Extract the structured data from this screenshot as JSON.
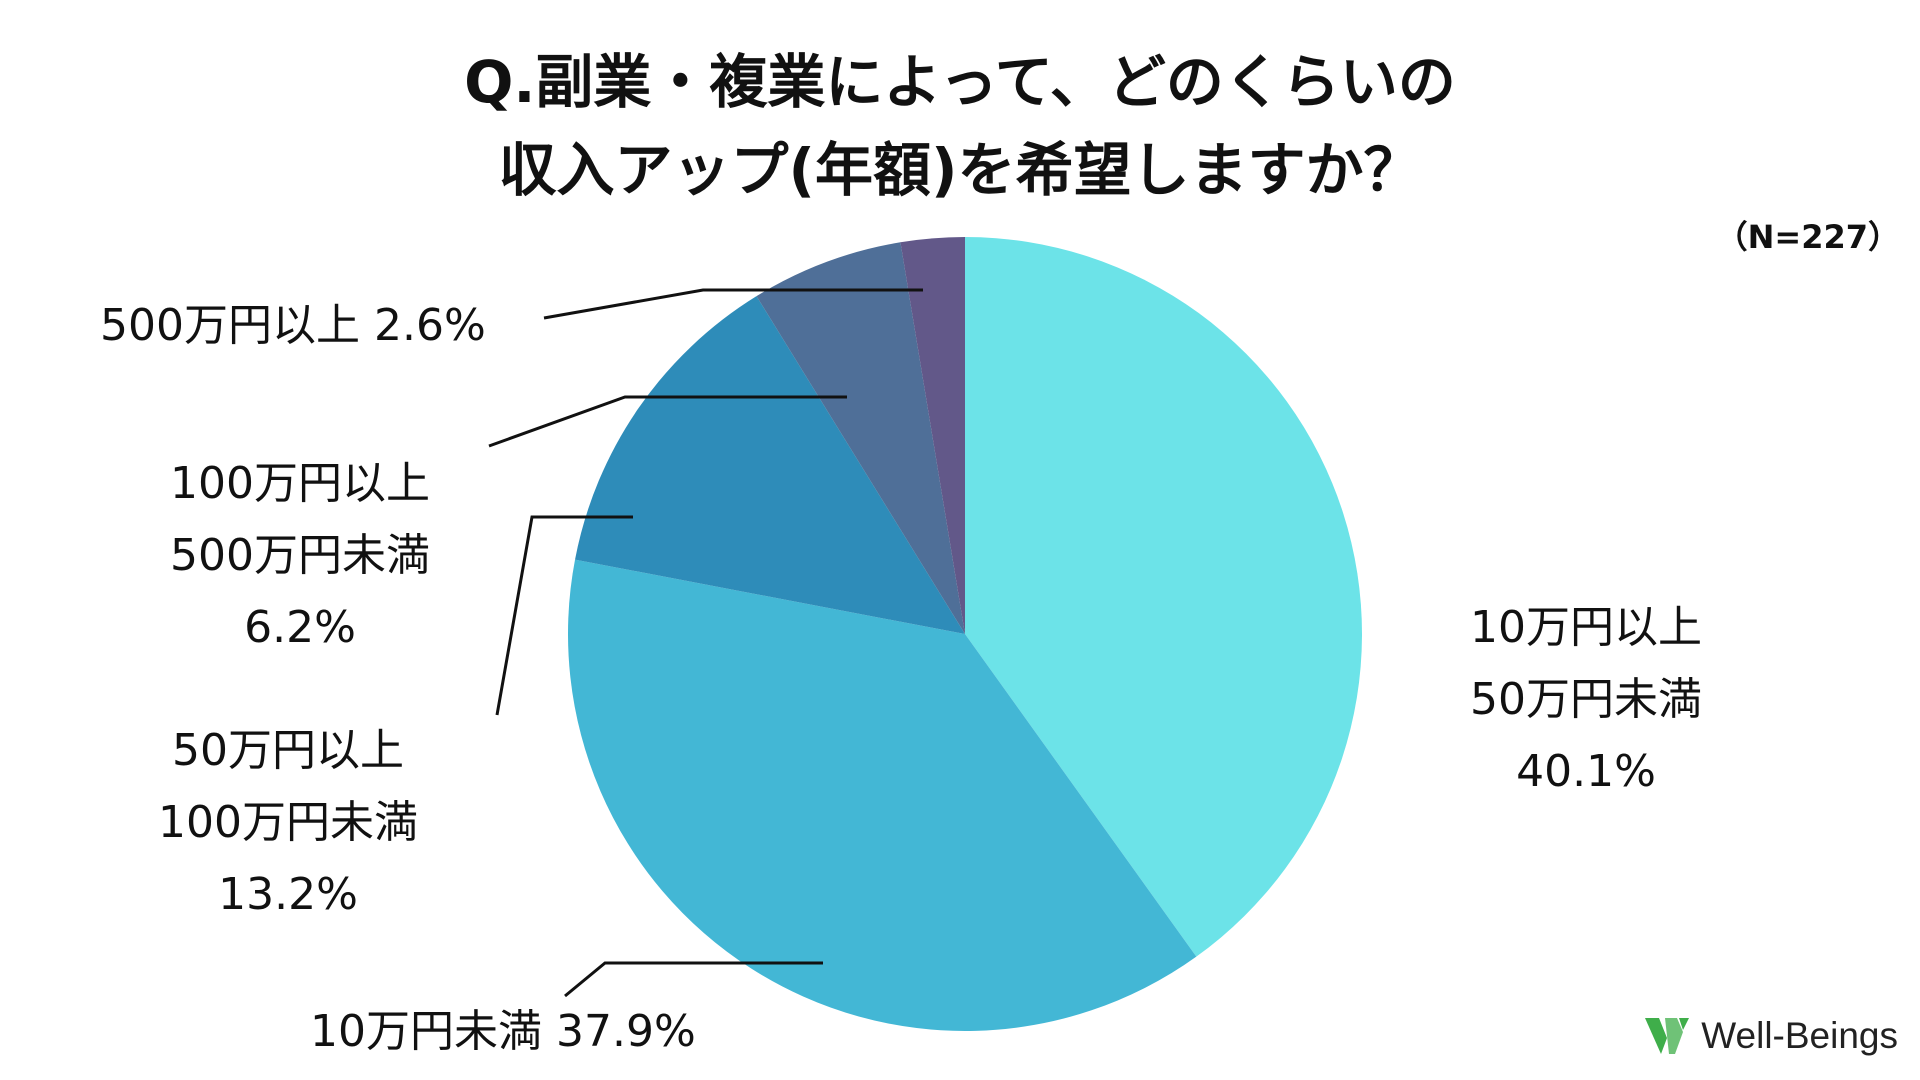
{
  "title": {
    "line1": "Q.副業・複業によって、どのくらいの",
    "line2": "収入アップ(年額)を希望しますか？"
  },
  "sample_size": "（N=227）",
  "chart_data": {
    "type": "pie",
    "start": "12 o'clock, clockwise",
    "slices": [
      {
        "label_lines": [
          "10万円以上",
          "50万円未満"
        ],
        "pct_text": "40.1%",
        "value": 40.1,
        "color": "#6ce3e8"
      },
      {
        "label_lines": [
          "10万円未満"
        ],
        "pct_text": "37.9%",
        "value": 37.9,
        "color": "#43b7d5"
      },
      {
        "label_lines": [
          "50万円以上",
          "100万円未満"
        ],
        "pct_text": "13.2%",
        "value": 13.2,
        "color": "#2e8cb9"
      },
      {
        "label_lines": [
          "100万円以上",
          "500万円未満"
        ],
        "pct_text": "6.2%",
        "value": 6.2,
        "color": "#4f6f98"
      },
      {
        "label_lines": [
          "500万円以上"
        ],
        "pct_text": "2.6%",
        "value": 2.6,
        "color": "#625889"
      }
    ]
  },
  "logo": {
    "text": "Well-Beings",
    "color": "#3fae4a"
  }
}
